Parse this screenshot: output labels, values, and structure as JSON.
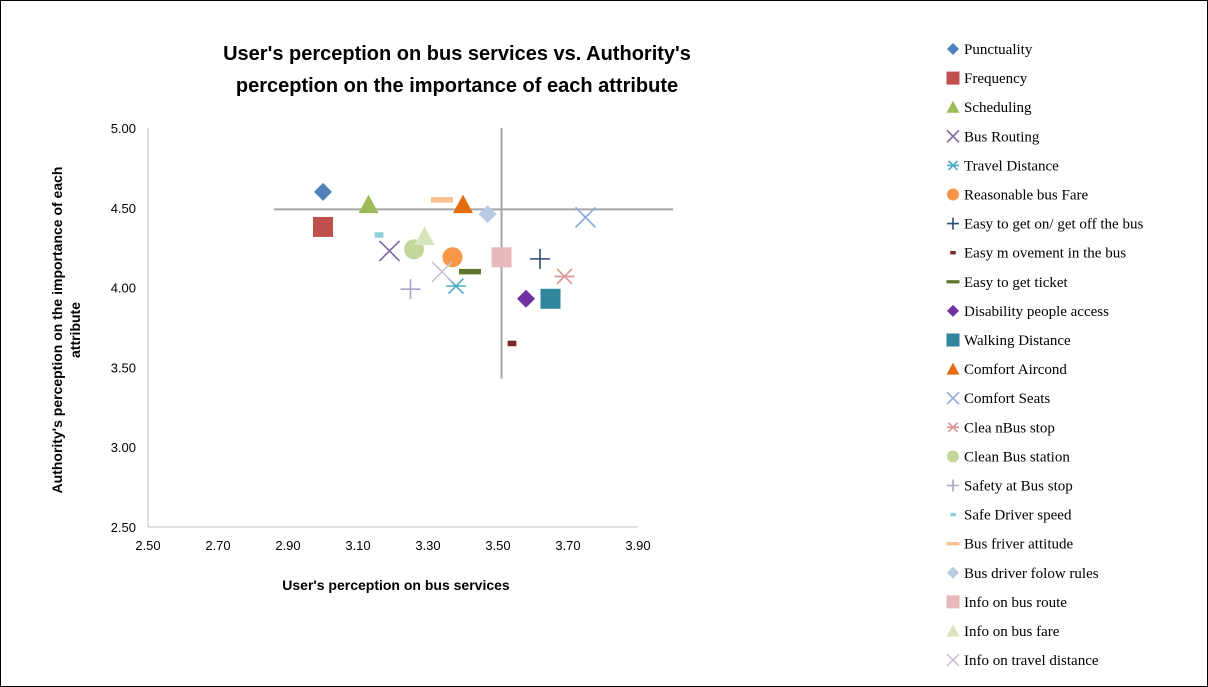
{
  "chart_data": {
    "type": "scatter",
    "title_lines": [
      "User's perception on bus services vs. Authority's",
      "perception on the importance of each attribute"
    ],
    "xlabel": "User's perception on bus services",
    "ylabel_lines": [
      "Authority's perception on the importance of each",
      "attribute"
    ],
    "xlim": [
      2.5,
      3.9
    ],
    "ylim": [
      2.5,
      5.0
    ],
    "xticks": [
      "2.50",
      "2.70",
      "2.90",
      "3.10",
      "3.30",
      "3.50",
      "3.70",
      "3.90"
    ],
    "yticks": [
      "2.50",
      "3.00",
      "3.50",
      "4.00",
      "4.50",
      "5.00"
    ],
    "grid": false,
    "legend_position": "right",
    "reference_lines": {
      "x": 3.51,
      "y": 4.49,
      "x_from": 2.86,
      "x_to": 4.0,
      "y_from": 3.43,
      "y_to": 5.0,
      "color": "#A6A6A6"
    },
    "series": [
      {
        "name": "Punctuality",
        "x": 3.0,
        "y": 4.6,
        "marker": "diamond",
        "color": "#4F81BD"
      },
      {
        "name": "Frequency",
        "x": 3.0,
        "y": 4.38,
        "marker": "square",
        "color": "#C0504D"
      },
      {
        "name": "Scheduling",
        "x": 3.13,
        "y": 4.52,
        "marker": "triangle",
        "color": "#9BBB59"
      },
      {
        "name": "Bus Routing",
        "x": 3.19,
        "y": 4.23,
        "marker": "x",
        "color": "#8064A2"
      },
      {
        "name": "Travel Distance",
        "x": 3.38,
        "y": 4.01,
        "marker": "star",
        "color": "#4BACC6"
      },
      {
        "name": "Reasonable bus Fare",
        "x": 3.37,
        "y": 4.19,
        "marker": "circle",
        "color": "#F79646"
      },
      {
        "name": "Easy to get on/ get off the bus",
        "x": 3.62,
        "y": 4.18,
        "marker": "plus",
        "color": "#2C4D75"
      },
      {
        "name": "Easy m ovement in the bus",
        "x": 3.54,
        "y": 3.65,
        "marker": "dash",
        "color": "#772C2A"
      },
      {
        "name": "Easy to get ticket",
        "x": 3.42,
        "y": 4.1,
        "marker": "hline",
        "color": "#5F7530"
      },
      {
        "name": "Disability people access",
        "x": 3.58,
        "y": 3.93,
        "marker": "diamond",
        "color": "#7030A0"
      },
      {
        "name": "Walking Distance",
        "x": 3.65,
        "y": 3.93,
        "marker": "square",
        "color": "#31859C"
      },
      {
        "name": "Comfort Aircond",
        "x": 3.4,
        "y": 4.52,
        "marker": "triangle",
        "color": "#E46C0A"
      },
      {
        "name": "Comfort Seats",
        "x": 3.75,
        "y": 4.44,
        "marker": "x",
        "color": "#8EA9DB"
      },
      {
        "name": "Clea nBus stop",
        "x": 3.69,
        "y": 4.07,
        "marker": "star",
        "color": "#DA9694"
      },
      {
        "name": "Clean Bus station",
        "x": 3.26,
        "y": 4.24,
        "marker": "circle",
        "color": "#C4D79B"
      },
      {
        "name": "Safety at Bus stop",
        "x": 3.25,
        "y": 3.99,
        "marker": "plus",
        "color": "#B1A0C7"
      },
      {
        "name": "Safe Driver speed",
        "x": 3.16,
        "y": 4.33,
        "marker": "dash",
        "color": "#92CDDC"
      },
      {
        "name": "Bus friver attitude",
        "x": 3.34,
        "y": 4.55,
        "marker": "hline",
        "color": "#FABF8F"
      },
      {
        "name": "Bus driver folow rules",
        "x": 3.47,
        "y": 4.46,
        "marker": "diamond",
        "color": "#B8CCE4"
      },
      {
        "name": "Info on bus route",
        "x": 3.51,
        "y": 4.19,
        "marker": "square",
        "color": "#E6B8B7"
      },
      {
        "name": "Info on bus fare",
        "x": 3.29,
        "y": 4.32,
        "marker": "triangle",
        "color": "#D8E4BC"
      },
      {
        "name": "Info on travel distance",
        "x": 3.34,
        "y": 4.1,
        "marker": "x",
        "color": "#CCC0DA"
      }
    ]
  }
}
